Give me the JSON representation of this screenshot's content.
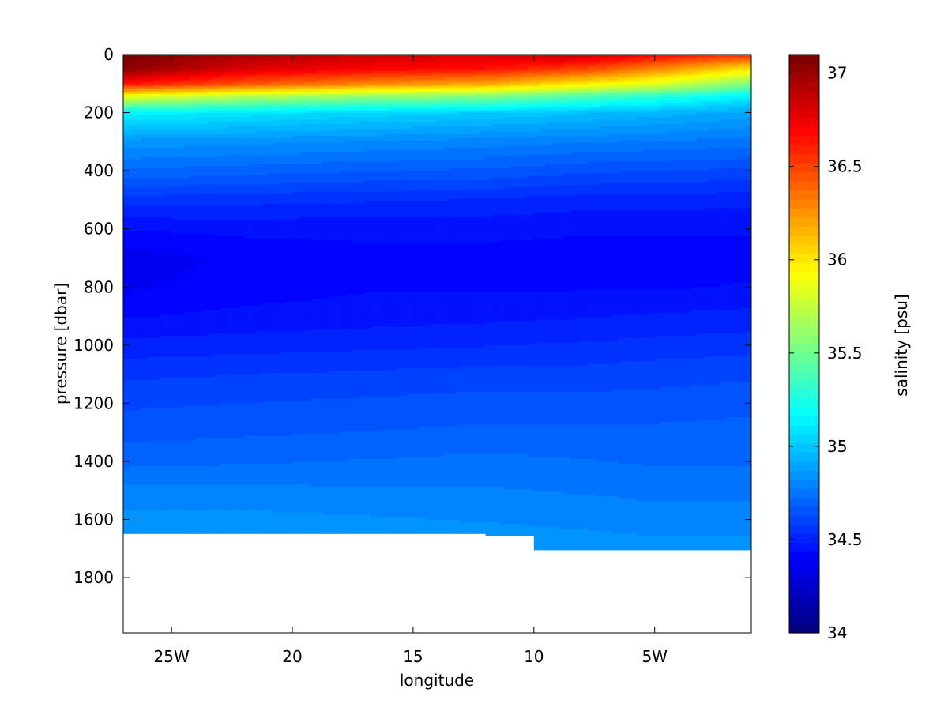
{
  "chart_data": {
    "type": "heatmap",
    "title": "",
    "xlabel": "longitude",
    "ylabel": "pressure [dbar]",
    "xlim": [
      -27,
      -1
    ],
    "ylim": [
      0,
      1990
    ],
    "y_reversed": true,
    "grid": false,
    "x_ticks": [
      {
        "value": -25,
        "label": "25W"
      },
      {
        "value": -20,
        "label": "20"
      },
      {
        "value": -15,
        "label": "15"
      },
      {
        "value": -10,
        "label": "10"
      },
      {
        "value": -5,
        "label": "5W"
      }
    ],
    "y_ticks": [
      {
        "value": 0,
        "label": "0"
      },
      {
        "value": 200,
        "label": "200"
      },
      {
        "value": 400,
        "label": "400"
      },
      {
        "value": 600,
        "label": "600"
      },
      {
        "value": 800,
        "label": "800"
      },
      {
        "value": 1000,
        "label": "1000"
      },
      {
        "value": 1200,
        "label": "1200"
      },
      {
        "value": 1400,
        "label": "1400"
      },
      {
        "value": 1600,
        "label": "1600"
      },
      {
        "value": 1800,
        "label": "1800"
      }
    ],
    "colorbar": {
      "label": "salinity [psu]",
      "range": [
        34,
        37.1
      ],
      "colormap": "jet",
      "ticks": [
        {
          "value": 34,
          "label": "34"
        },
        {
          "value": 34.5,
          "label": "34.5"
        },
        {
          "value": 35,
          "label": "35"
        },
        {
          "value": 35.5,
          "label": "35.5"
        },
        {
          "value": 36,
          "label": "36"
        },
        {
          "value": 36.5,
          "label": "36.5"
        },
        {
          "value": 37,
          "label": "37"
        }
      ]
    },
    "x": [
      -27,
      -22,
      -17,
      -12,
      -8,
      -5,
      -1
    ],
    "profiles": [
      {
        "p": [
          0,
          50,
          100,
          150,
          200,
          300,
          400,
          500,
          600,
          700,
          800,
          900,
          1000,
          1100,
          1200,
          1300,
          1400,
          1500,
          1600,
          1650
        ],
        "s": [
          37.1,
          37.05,
          36.65,
          35.8,
          35.15,
          34.85,
          34.72,
          34.56,
          34.44,
          34.36,
          34.38,
          34.43,
          34.5,
          34.57,
          34.62,
          34.66,
          34.71,
          34.79,
          34.84,
          34.86
        ]
      },
      {
        "p": [
          0,
          50,
          100,
          150,
          200,
          300,
          400,
          500,
          600,
          700,
          800,
          900,
          1000,
          1100,
          1200,
          1300,
          1400,
          1500,
          1600,
          1650
        ],
        "s": [
          36.95,
          36.8,
          36.45,
          35.65,
          35.1,
          34.84,
          34.7,
          34.55,
          34.45,
          34.4,
          34.41,
          34.45,
          34.51,
          34.58,
          34.63,
          34.67,
          34.72,
          34.79,
          34.84,
          34.86
        ]
      },
      {
        "p": [
          0,
          50,
          100,
          150,
          200,
          300,
          400,
          500,
          600,
          700,
          800,
          900,
          1000,
          1100,
          1200,
          1300,
          1400,
          1500,
          1600,
          1650
        ],
        "s": [
          36.85,
          36.7,
          36.3,
          35.55,
          35.05,
          34.82,
          34.68,
          34.54,
          34.45,
          34.42,
          34.43,
          34.46,
          34.52,
          34.59,
          34.64,
          34.68,
          34.73,
          34.78,
          34.83,
          34.85
        ]
      },
      {
        "p": [
          0,
          50,
          100,
          150,
          200,
          300,
          400,
          500,
          600,
          700,
          800,
          900,
          1000,
          1100,
          1200,
          1300,
          1400,
          1500,
          1600,
          1650
        ],
        "s": [
          36.8,
          36.65,
          36.2,
          35.5,
          35.02,
          34.8,
          34.67,
          34.53,
          34.45,
          34.42,
          34.43,
          34.47,
          34.53,
          34.6,
          34.65,
          34.69,
          34.74,
          34.78,
          34.82,
          34.84
        ]
      },
      {
        "p": [
          0,
          50,
          100,
          150,
          200,
          300,
          400,
          500,
          600,
          700,
          800,
          900,
          1000,
          1100,
          1200,
          1300,
          1400,
          1500,
          1600,
          1650,
          1700
        ],
        "s": [
          36.85,
          36.5,
          36.0,
          35.35,
          34.98,
          34.78,
          34.64,
          34.51,
          34.44,
          34.42,
          34.43,
          34.48,
          34.54,
          34.6,
          34.65,
          34.69,
          34.73,
          34.77,
          34.81,
          34.83,
          34.85
        ]
      },
      {
        "p": [
          0,
          50,
          100,
          150,
          200,
          300,
          400,
          500,
          600,
          700,
          800,
          900,
          1000,
          1100,
          1200,
          1300,
          1400,
          1500,
          1600,
          1650,
          1700
        ],
        "s": [
          36.7,
          36.3,
          35.85,
          35.25,
          34.95,
          34.77,
          34.63,
          34.51,
          34.44,
          34.42,
          34.43,
          34.49,
          34.55,
          34.61,
          34.65,
          34.69,
          34.72,
          34.76,
          34.8,
          34.82,
          34.84
        ]
      },
      {
        "p": [
          0,
          50,
          100,
          150,
          200,
          300,
          400,
          500,
          600,
          700,
          800,
          900,
          1000,
          1100,
          1200,
          1300,
          1400,
          1500,
          1600,
          1650,
          1700
        ],
        "s": [
          36.55,
          36.0,
          35.55,
          35.1,
          34.9,
          34.75,
          34.62,
          34.5,
          34.44,
          34.42,
          34.44,
          34.5,
          34.56,
          34.62,
          34.66,
          34.7,
          34.72,
          34.76,
          34.8,
          34.82,
          34.84
        ]
      }
    ]
  }
}
